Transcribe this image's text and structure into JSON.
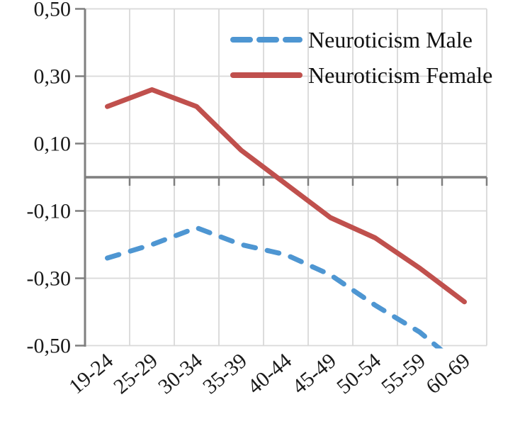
{
  "chart_data": {
    "type": "line",
    "title": "",
    "xlabel": "",
    "ylabel": "",
    "categories": [
      "19-24",
      "25-29",
      "30-34",
      "35-39",
      "40-44",
      "45-49",
      "50-54",
      "55-59",
      "60-69"
    ],
    "series": [
      {
        "name": "Neuroticism Male",
        "color": "#4E96D2",
        "line_style": "dashed",
        "values": [
          -0.24,
          -0.2,
          -0.15,
          -0.2,
          -0.23,
          -0.29,
          -0.38,
          -0.46,
          -0.57
        ],
        "clipped_at_ymin": true
      },
      {
        "name": "Neuroticism Female",
        "color": "#C0504D",
        "line_style": "solid",
        "values": [
          0.21,
          0.26,
          0.21,
          0.08,
          -0.02,
          -0.12,
          -0.18,
          -0.27,
          -0.37
        ],
        "clipped_at_ymin": false
      }
    ],
    "ylim": [
      -0.5,
      0.5
    ],
    "y_ticks": [
      {
        "value": 0.5,
        "label": "0,50"
      },
      {
        "value": 0.3,
        "label": "0,30"
      },
      {
        "value": 0.1,
        "label": "0,10"
      },
      {
        "value": -0.1,
        "label": "-0,10"
      },
      {
        "value": -0.3,
        "label": "-0,30"
      },
      {
        "value": -0.5,
        "label": "-0,50"
      }
    ],
    "grid": "on",
    "legend_position": "top-right-inside",
    "x_label_rotation_deg": -40,
    "colors": {
      "gridline": "#D9D9D9",
      "axis": "#7F7F7F",
      "text": "#1A1A1A",
      "background": "#FFFFFF"
    }
  }
}
